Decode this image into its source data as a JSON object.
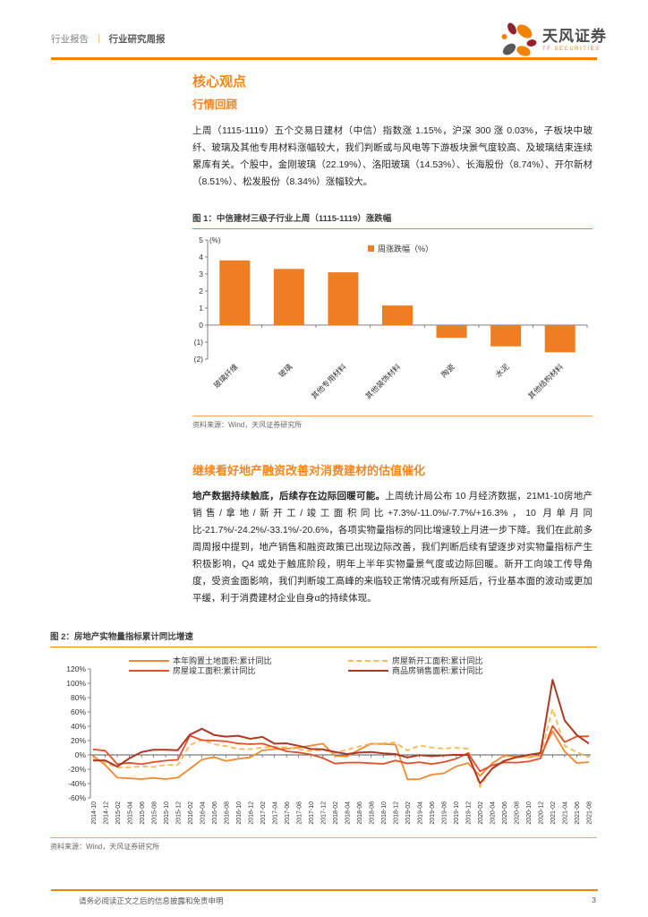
{
  "header": {
    "doc_type": "行业报告",
    "separator": "｜",
    "doc_subtype": "行业研究周报",
    "logo_title": "天风证券",
    "logo_subtitle": "TF SECURITIES"
  },
  "sections": {
    "main_title": "核心观点",
    "market_review_title": "行情回顾",
    "market_review_body": "上周（1115-1119）五个交易日建材（中信）指数涨 1.15%，沪深 300 涨 0.03%，子板块中玻纤、玻璃及其他专用材料涨幅较大，我们判断或与风电等下游板块景气度较高、及玻璃结束连续累库有关。个股中，金刚玻璃（22.19%）、洛阳玻璃（14.53%）、长海股份（8.74%）、开尔新材（8.51%）、松发股份（8.34%）涨幅较大。",
    "outlook_title": "继续看好地产融资改善对消费建材的估值催化",
    "outlook_lead": "地产数据持续触底，后续存在边际回暖可能。",
    "outlook_body": "上周统计局公布 10 月经济数据，21M1-10房地产销售/拿地/新开工/竣工面积同比+7.3%/-11.0%/-7.7%/+16.3%，10 月单月同比-21.7%/-24.2%/-33.1%/-20.6%，各项实物量指标的同比增速较上月进一步下降。我们在此前多周周报中提到，地产销售和融资政策已出现边际改善，我们判断后续有望逐步对实物量指标产生积极影响，Q4 或处于触底阶段，明年上半年实物量景气度或边际回暖。新开工向竣工传导角度，受资金面影响，我们判断竣工高峰的来临较正常情况或有所延后，行业基本面的波动或更加平缓，利于消费建材企业自身α的持续体现。"
  },
  "figure1": {
    "caption": "图 1：中信建材三级子行业上周（1115-1119）涨跌幅",
    "source": "资料来源：Wind，天风证券研究所"
  },
  "figure2": {
    "caption": "图 2：房地产实物量指标累计同比增速",
    "source": "资料来源：Wind，天风证券研究所"
  },
  "footer": {
    "disclaimer": "请务必阅读正文之后的信息披露和免责申明",
    "page_number": "3"
  },
  "colors": {
    "accent_orange": "#f08300",
    "heading_orange": "#f5861f",
    "bar_orange": "#ef7d22",
    "logo_maroon": "#8e2430",
    "logo_gray": "#58595b"
  },
  "chart_data": [
    {
      "type": "bar",
      "title": "中信建材三级子行业上周（1115-1119）涨跌幅",
      "legend": "周涨跌幅（%）",
      "unit_label": "(%)",
      "categories": [
        "玻璃纤维",
        "玻璃",
        "其他专用材料",
        "其他装饰材料",
        "陶瓷",
        "水泥",
        "其他结构材料"
      ],
      "values": [
        3.8,
        3.3,
        3.1,
        1.15,
        -0.75,
        -1.25,
        -1.6
      ],
      "ylim": [
        -2,
        5
      ],
      "yticks": [
        5,
        4,
        3,
        2,
        1,
        0,
        -1,
        -2
      ],
      "bar_color": "#ef7d22",
      "grid": false,
      "legend_position": "top-center"
    },
    {
      "type": "line",
      "title": "房地产实物量指标累计同比增速",
      "ylim": [
        -60,
        120
      ],
      "ytick_step": 20,
      "ytick_suffix": "%",
      "grid": false,
      "legend_position": "top",
      "x": [
        "2014-10",
        "2014-12",
        "2015-02",
        "2015-04",
        "2015-06",
        "2015-08",
        "2015-10",
        "2015-12",
        "2016-02",
        "2016-04",
        "2016-06",
        "2016-08",
        "2016-10",
        "2016-12",
        "2017-02",
        "2017-04",
        "2017-06",
        "2017-08",
        "2017-10",
        "2017-12",
        "2018-02",
        "2018-04",
        "2018-06",
        "2018-08",
        "2018-10",
        "2018-12",
        "2019-02",
        "2019-04",
        "2019-06",
        "2019-08",
        "2019-10",
        "2019-12",
        "2020-02",
        "2020-04",
        "2020-06",
        "2020-08",
        "2020-10",
        "2020-12",
        "2021-02",
        "2021-04",
        "2021-06",
        "2021-08"
      ],
      "series": [
        {
          "name": "本年购置土地面积:累计同比",
          "color": "#f2882f",
          "dash": false,
          "values": [
            -1.2,
            -14.0,
            -31.7,
            -32.7,
            -33.8,
            -32.1,
            -33.8,
            -31.7,
            -19.4,
            -6.5,
            -3.0,
            -8.5,
            -5.5,
            -3.4,
            6.2,
            8.1,
            8.8,
            10.1,
            12.9,
            15.8,
            -1.2,
            -2.1,
            7.2,
            15.6,
            15.3,
            14.2,
            -34.1,
            -33.8,
            -27.5,
            -25.6,
            -16.3,
            -11.4,
            -29.3,
            -12.0,
            -0.9,
            -2.4,
            -3.3,
            -1.1,
            33.0,
            4.8,
            -11.3,
            -10.2
          ]
        },
        {
          "name": "房屋新开工面积:累计同比",
          "color": "#fbb954",
          "dash": true,
          "values": [
            -5.5,
            -10.7,
            -17.7,
            -17.3,
            -15.8,
            -16.8,
            -13.9,
            -14.0,
            13.7,
            21.4,
            14.9,
            12.2,
            8.1,
            8.1,
            10.4,
            11.1,
            10.6,
            7.6,
            5.6,
            7.0,
            2.9,
            7.3,
            11.8,
            15.9,
            16.3,
            17.2,
            6.0,
            13.1,
            10.1,
            8.9,
            10.0,
            8.5,
            -44.9,
            -18.4,
            -7.6,
            -3.6,
            -2.6,
            -1.2,
            64.3,
            12.8,
            3.8,
            -3.2
          ]
        },
        {
          "name": "房屋竣工面积:累计同比",
          "color": "#e2502b",
          "dash": false,
          "values": [
            7.7,
            5.9,
            -12.9,
            -11.0,
            -13.0,
            -10.0,
            -8.0,
            -6.9,
            27.0,
            20.5,
            20.0,
            19.0,
            16.0,
            15.0,
            15.8,
            10.6,
            5.0,
            3.4,
            0.6,
            -4.4,
            -12.1,
            -10.7,
            -10.6,
            -11.6,
            -12.5,
            -7.8,
            -11.9,
            -10.3,
            -12.7,
            -10.0,
            -5.5,
            2.6,
            -22.9,
            -14.5,
            -10.5,
            -10.8,
            -9.2,
            -4.9,
            40.4,
            17.9,
            25.7,
            26.0
          ]
        },
        {
          "name": "商品房销售面积:累计同比",
          "color": "#a93a28",
          "dash": false,
          "values": [
            -7.8,
            -7.6,
            -16.3,
            -4.8,
            3.9,
            7.2,
            7.2,
            6.5,
            28.2,
            36.5,
            27.9,
            25.5,
            26.8,
            22.5,
            25.1,
            15.7,
            16.1,
            12.7,
            8.2,
            7.7,
            4.1,
            1.3,
            3.3,
            4.0,
            2.2,
            1.3,
            -3.6,
            -0.3,
            -1.8,
            -0.6,
            0.1,
            -0.1,
            -39.9,
            -19.3,
            -8.4,
            -3.3,
            0.0,
            2.6,
            104.9,
            48.1,
            27.7,
            15.9
          ]
        }
      ]
    }
  ]
}
